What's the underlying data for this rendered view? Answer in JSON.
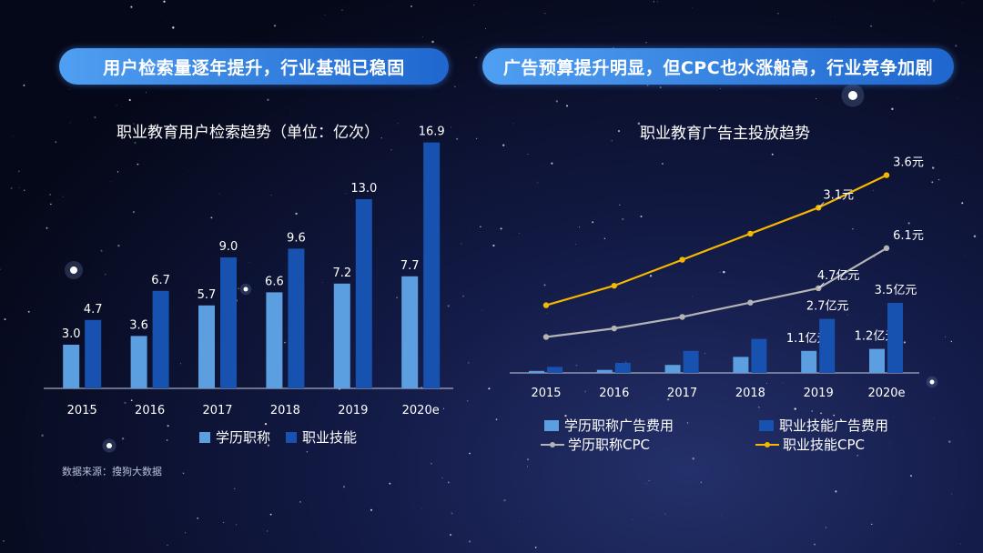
{
  "banners": {
    "left": "用户检索量逐年提升，行业基础已稳固",
    "right": "广告预算提升明显，但CPC也水涨船高，行业竞争加剧"
  },
  "colors": {
    "light_bar": "#5c9fe0",
    "dark_bar": "#1852b0",
    "gray_line": "#b4b4b4",
    "yellow_line": "#f5b800"
  },
  "chart_data": [
    {
      "type": "bar",
      "title": "职业教育用户检索趋势（单位：亿次）",
      "categories": [
        "2015",
        "2016",
        "2017",
        "2018",
        "2019",
        "2020e"
      ],
      "series": [
        {
          "name": "学历职称",
          "values": [
            3.0,
            3.6,
            5.7,
            6.6,
            7.2,
            7.7
          ],
          "labels": [
            "3.0",
            "3.6",
            "5.7",
            "6.6",
            "7.2",
            "7.7"
          ]
        },
        {
          "name": "职业技能",
          "values": [
            4.7,
            6.7,
            9.0,
            9.6,
            13.0,
            16.9
          ],
          "labels": [
            "4.7",
            "6.7",
            "9.0",
            "9.6",
            "13.0",
            "16.9"
          ]
        }
      ],
      "ylim": [
        0,
        17.5
      ],
      "source": "数据来源：搜狗大数据"
    },
    {
      "type": "bar+line",
      "title": "职业教育广告主投放趋势",
      "categories": [
        "2015",
        "2016",
        "2017",
        "2018",
        "2019",
        "2020e"
      ],
      "series": [
        {
          "name": "学历职称广告费用",
          "kind": "bar",
          "values": [
            0.1,
            0.15,
            0.4,
            0.8,
            1.1,
            1.2
          ],
          "labels": [
            "",
            "",
            "",
            "",
            "1.1亿元",
            "1.2亿元"
          ]
        },
        {
          "name": "职业技能广告费用",
          "kind": "bar",
          "values": [
            0.3,
            0.5,
            1.1,
            1.7,
            2.7,
            3.5
          ],
          "labels": [
            "",
            "",
            "",
            "",
            "2.7亿元",
            "3.5亿元"
          ]
        },
        {
          "name": "学历职称CPC",
          "kind": "line",
          "values": [
            3.0,
            3.3,
            3.7,
            4.2,
            4.7,
            6.1
          ],
          "labels": [
            "",
            "",
            "",
            "",
            "4.7亿元",
            "6.1元"
          ]
        },
        {
          "name": "职业技能CPC",
          "kind": "line",
          "values": [
            1.6,
            1.9,
            2.3,
            2.7,
            3.1,
            3.6
          ],
          "labels": [
            "",
            "",
            "",
            "",
            "3.1元",
            "3.6元"
          ]
        }
      ]
    }
  ]
}
